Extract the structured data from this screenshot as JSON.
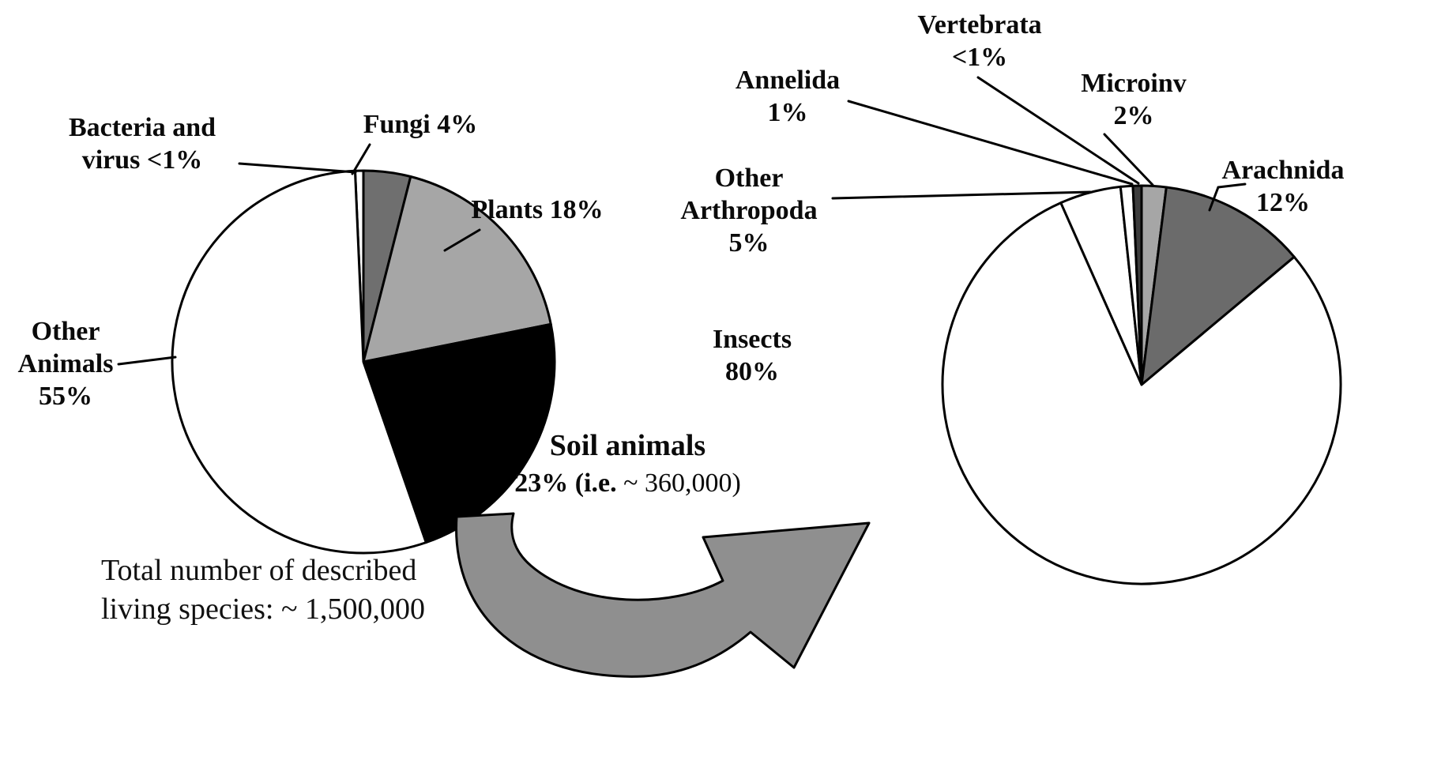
{
  "figure": {
    "background": "#ffffff",
    "arrow": {
      "name": "curved-flow-arrow",
      "color": "#8f8f8f",
      "outline": "#000000"
    }
  },
  "chart_data": [
    {
      "type": "pie",
      "id": "described-living-species",
      "note": "Total number of described\nliving species: ~ 1,500,000",
      "direction": "clockwise",
      "start_angle_deg": -2.5,
      "legend": "none",
      "slices": [
        {
          "name": "Bacteria and virus",
          "label": "Bacteria and\nvirus <1%",
          "value": 0.7,
          "color": "#ffffff"
        },
        {
          "name": "Fungi",
          "label": "Fungi 4%",
          "value": 4,
          "color": "#6f6f6f"
        },
        {
          "name": "Plants",
          "label": "Plants 18%",
          "value": 18,
          "color": "#a6a6a6"
        },
        {
          "name": "Soil animals",
          "label_line1": "Soil animals",
          "label_line2_bold": "23% (i.e. ",
          "label_line2_regular": "~ 360,000)",
          "value": 23,
          "color": "#000000"
        },
        {
          "name": "Other Animals",
          "label": "Other\nAnimals\n55%",
          "value": 55,
          "color": "#ffffff"
        }
      ]
    },
    {
      "type": "pie",
      "id": "soil-animals-breakdown",
      "direction": "clockwise",
      "start_angle_deg": -23.95,
      "legend": "none",
      "slices": [
        {
          "name": "Other Arthropoda",
          "label": "Other\nArthropoda\n5%",
          "value": 5,
          "color": "#ffffff"
        },
        {
          "name": "Annelida",
          "label": "Annelida\n1%",
          "value": 1,
          "color": "#ffffff"
        },
        {
          "name": "Vertebrata",
          "label": "Vertebrata\n<1%",
          "value": 0.7,
          "color": "#3d3d3d"
        },
        {
          "name": "Microinv",
          "label": "Microinv\n2%",
          "value": 2,
          "color": "#a6a6a6"
        },
        {
          "name": "Arachnida",
          "label": "Arachnida\n12%",
          "value": 12,
          "color": "#6b6b6b"
        },
        {
          "name": "Insects",
          "label": "Insects\n80%",
          "value": 80,
          "color": "#ffffff"
        }
      ]
    }
  ]
}
